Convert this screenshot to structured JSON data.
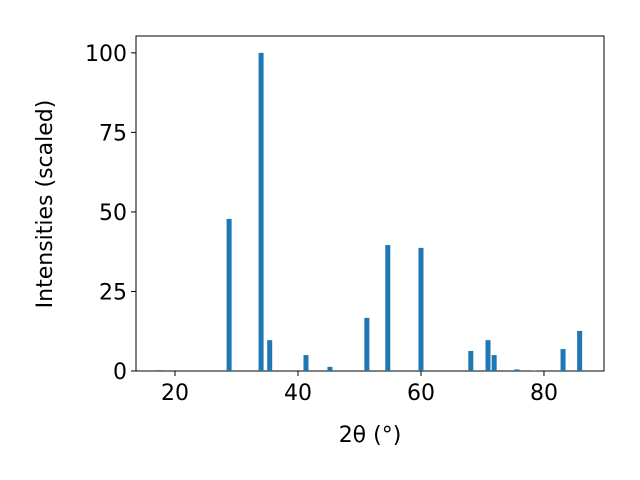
{
  "chart_data": {
    "type": "bar",
    "xlabel": "2θ (°)",
    "ylabel": "Intensities (scaled)",
    "x": [
      17.4,
      28.8,
      34.0,
      35.4,
      41.3,
      45.2,
      51.2,
      54.6,
      60.0,
      68.1,
      70.9,
      71.9,
      75.6,
      78.4,
      83.1,
      85.8
    ],
    "values": [
      0.3,
      47.8,
      100,
      9.7,
      5.0,
      1.3,
      16.7,
      39.6,
      38.7,
      6.3,
      9.7,
      5.0,
      0.5,
      0.2,
      6.9,
      12.6
    ],
    "color": "#1f77b4",
    "xlim": [
      13.66,
      89.76
    ],
    "xticks": [
      20,
      40,
      60,
      80
    ],
    "ylim": [
      0,
      105.3
    ],
    "yticks": [
      0,
      25,
      50,
      75,
      100
    ]
  }
}
